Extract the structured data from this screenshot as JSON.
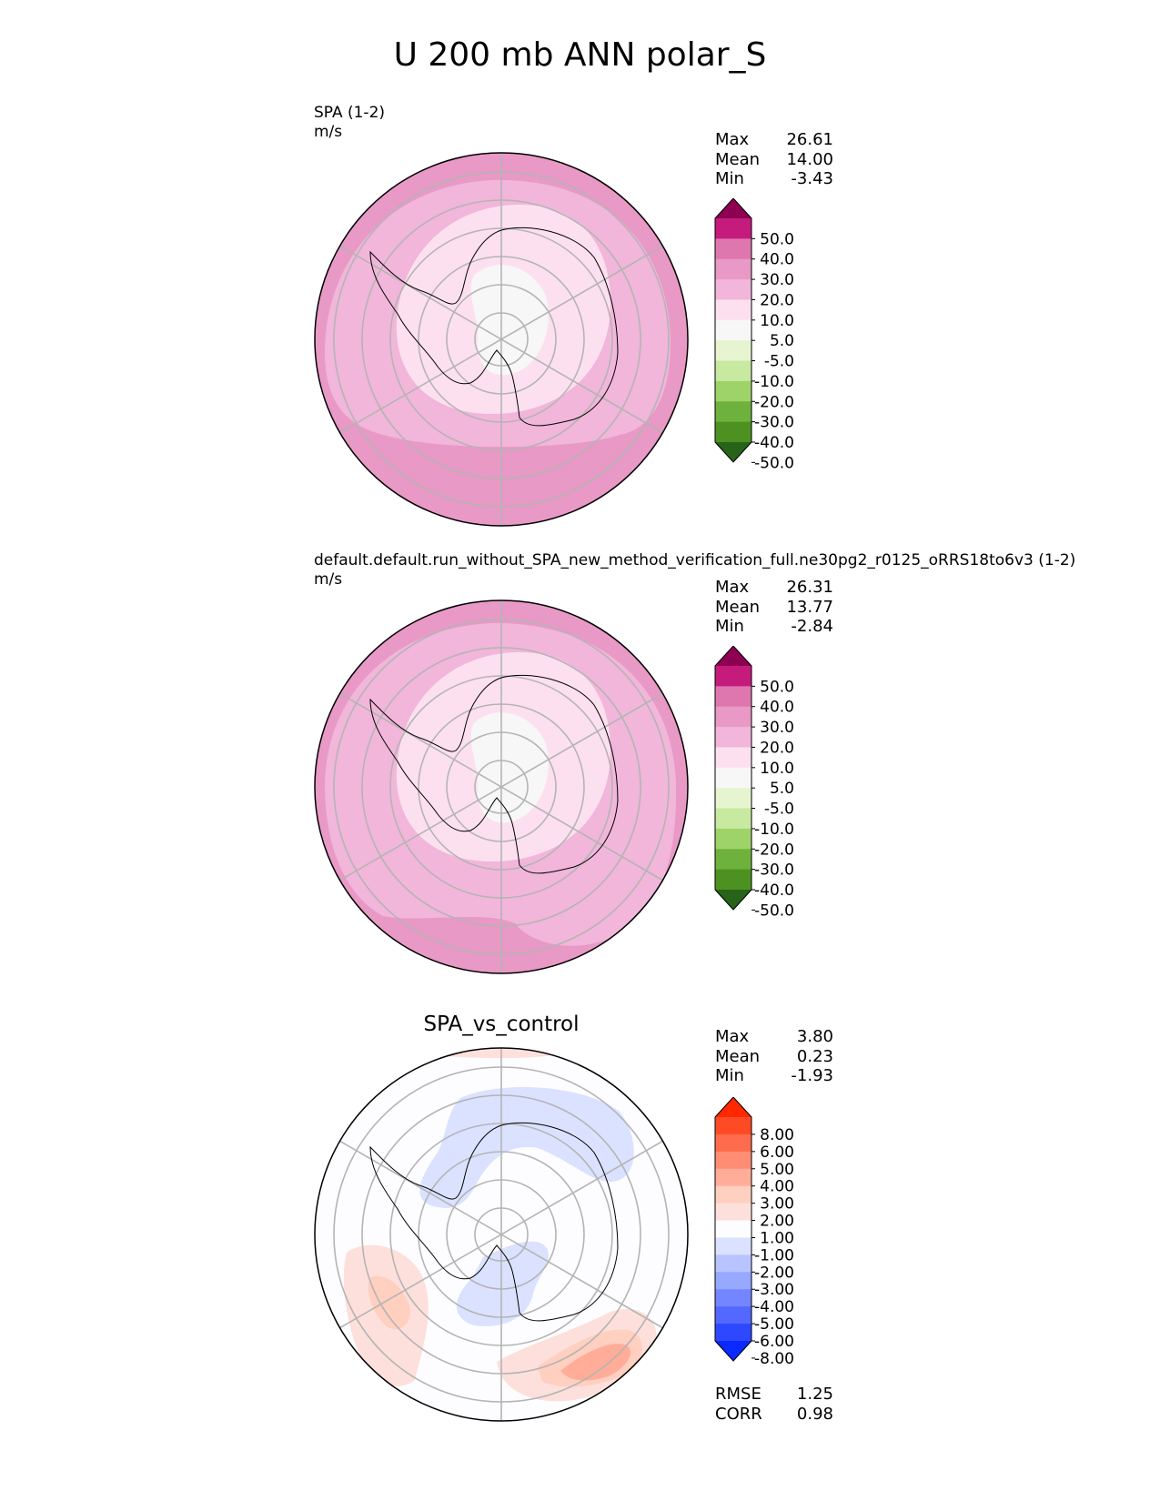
{
  "title": "U 200 mb ANN polar_S",
  "colorbars": {
    "abs": {
      "colors": [
        "#8e0152",
        "#c51b7d",
        "#de77ae",
        "#e899c5",
        "#f1b6da",
        "#fde0ef",
        "#f7f7f7",
        "#e6f5d0",
        "#c7e9a0",
        "#9ed36a",
        "#6fb13d",
        "#4d9221",
        "#276419"
      ],
      "ticks": [
        "50.0",
        "40.0",
        "30.0",
        "20.0",
        "10.0",
        "5.0",
        "-5.0",
        "-10.0",
        "-20.0",
        "-30.0",
        "-40.0",
        "-50.0"
      ]
    },
    "diff": {
      "colors": [
        "#ff2800",
        "#ff4a26",
        "#ff6b4d",
        "#ff8d73",
        "#ffad99",
        "#ffcfc0",
        "#fde0db",
        "#fdfdff",
        "#dbe2ff",
        "#b8c4ff",
        "#97a8ff",
        "#7486ff",
        "#5268ff",
        "#2d48ff",
        "#0b2aff"
      ],
      "ticks": [
        "8.00",
        "6.00",
        "5.00",
        "4.00",
        "3.00",
        "2.00",
        "1.00",
        "-1.00",
        "-2.00",
        "-3.00",
        "-4.00",
        "-5.00",
        "-6.00",
        "-8.00"
      ]
    }
  },
  "panels": [
    {
      "label": "SPA (1-2)",
      "units": "m/s",
      "center_title": "",
      "stats": [
        {
          "name": "Max",
          "value": "26.61"
        },
        {
          "name": "Mean",
          "value": "14.00"
        },
        {
          "name": "Min",
          "value": "-3.43"
        }
      ]
    },
    {
      "label": "default.default.run_without_SPA_new_method_verification_full.ne30pg2_r0125_oRRS18to6v3 (1-2)",
      "units": "m/s",
      "center_title": "",
      "stats": [
        {
          "name": "Max",
          "value": "26.31"
        },
        {
          "name": "Mean",
          "value": "13.77"
        },
        {
          "name": "Min",
          "value": "-2.84"
        }
      ]
    },
    {
      "label": "",
      "units": "",
      "center_title": "SPA_vs_control",
      "stats": [
        {
          "name": "Max",
          "value": "3.80"
        },
        {
          "name": "Mean",
          "value": "0.23"
        },
        {
          "name": "Min",
          "value": "-1.93"
        }
      ],
      "metrics": [
        {
          "name": "RMSE",
          "value": "1.25"
        },
        {
          "name": "CORR",
          "value": "0.98"
        }
      ]
    }
  ],
  "chart_data": [
    {
      "type": "heatmap",
      "projection": "south-polar stereographic",
      "variable": "U 200 mb ANN",
      "name": "SPA (1-2)",
      "units": "m/s",
      "max": 26.61,
      "mean": 14.0,
      "min": -3.43,
      "levels": [
        -50,
        -40,
        -30,
        -20,
        -10,
        -5,
        5,
        10,
        20,
        30,
        40,
        50
      ]
    },
    {
      "type": "heatmap",
      "projection": "south-polar stereographic",
      "variable": "U 200 mb ANN",
      "name": "default.default.run_without_SPA_new_method_verification_full.ne30pg2_r0125_oRRS18to6v3 (1-2)",
      "units": "m/s",
      "max": 26.31,
      "mean": 13.77,
      "min": -2.84,
      "levels": [
        -50,
        -40,
        -30,
        -20,
        -10,
        -5,
        5,
        10,
        20,
        30,
        40,
        50
      ]
    },
    {
      "type": "heatmap",
      "projection": "south-polar stereographic",
      "name": "SPA_vs_control",
      "max": 3.8,
      "mean": 0.23,
      "min": -1.93,
      "rmse": 1.25,
      "corr": 0.98,
      "levels": [
        -8,
        -6,
        -5,
        -4,
        -3,
        -2,
        -1,
        1,
        2,
        3,
        4,
        5,
        6,
        8
      ]
    }
  ]
}
